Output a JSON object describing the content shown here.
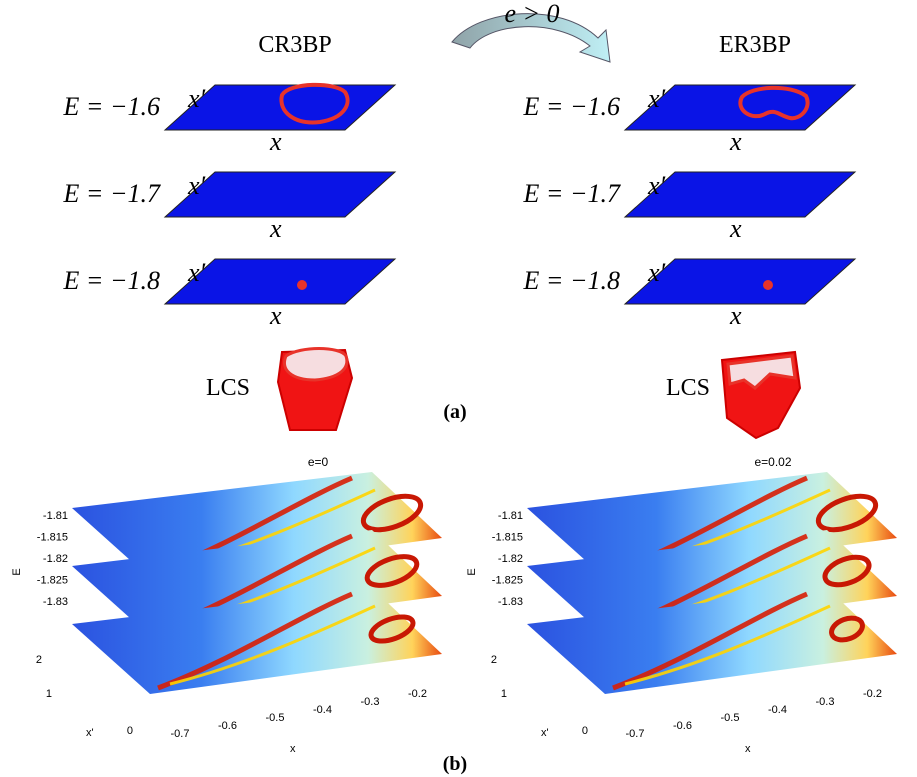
{
  "panel_a": {
    "label": "(a)",
    "arrow_label": "e > 0",
    "columns": [
      {
        "title": "CR3BP",
        "lcs": "LCS",
        "rows": [
          {
            "energy": "E = −1.6",
            "xp_axis": "x′",
            "x_axis": "x"
          },
          {
            "energy": "E = −1.7",
            "xp_axis": "x′",
            "x_axis": "x"
          },
          {
            "energy": "E = −1.8",
            "xp_axis": "x′",
            "x_axis": "x"
          }
        ]
      },
      {
        "title": "ER3BP",
        "lcs": "LCS",
        "rows": [
          {
            "energy": "E = −1.6",
            "xp_axis": "x′",
            "x_axis": "x"
          },
          {
            "energy": "E = −1.7",
            "xp_axis": "x′",
            "x_axis": "x"
          },
          {
            "energy": "E = −1.8",
            "xp_axis": "x′",
            "x_axis": "x"
          }
        ]
      }
    ]
  },
  "panel_b": {
    "label": "(b)",
    "plots": [
      {
        "title": "e=0",
        "e_label": "E",
        "e_ticks": [
          "-1.81",
          "-1.815",
          "-1.82",
          "-1.825",
          "-1.83"
        ],
        "xp_label": "x'",
        "xp_ticks": [
          "2",
          "1",
          "0"
        ],
        "x_label": "x",
        "x_ticks": [
          "-0.7",
          "-0.6",
          "-0.5",
          "-0.4",
          "-0.3",
          "-0.2"
        ]
      },
      {
        "title": "e=0.02",
        "e_label": "E",
        "e_ticks": [
          "-1.81",
          "-1.815",
          "-1.82",
          "-1.825",
          "-1.83"
        ],
        "xp_label": "x'",
        "xp_ticks": [
          "2",
          "1",
          "0"
        ],
        "x_label": "x",
        "x_ticks": [
          "-0.7",
          "-0.6",
          "-0.5",
          "-0.4",
          "-0.3",
          "-0.2"
        ]
      }
    ]
  }
}
